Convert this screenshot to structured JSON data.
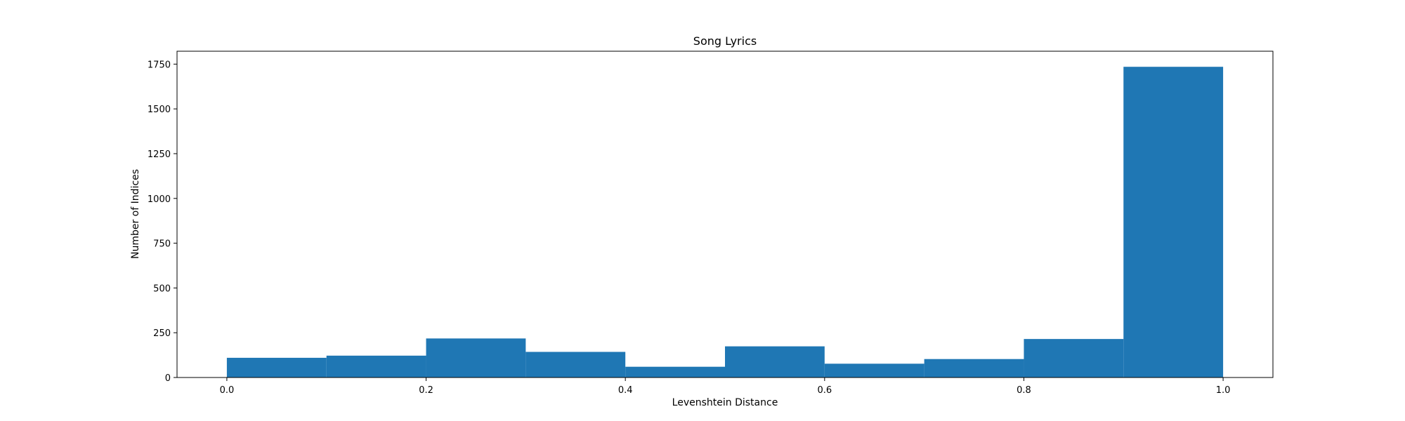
{
  "chart_data": {
    "type": "bar",
    "title": "Song Lyrics",
    "xlabel": "Levenshtein Distance",
    "ylabel": "Number of Indices",
    "bin_edges": [
      0.0,
      0.1,
      0.2,
      0.3,
      0.4,
      0.5,
      0.6,
      0.7,
      0.8,
      0.9,
      1.0
    ],
    "values": [
      110,
      122,
      218,
      143,
      60,
      174,
      77,
      103,
      215,
      1735
    ],
    "xlim": [
      -0.05,
      1.05
    ],
    "ylim": [
      0,
      1822
    ],
    "xticks": [
      0.0,
      0.2,
      0.4,
      0.6,
      0.8,
      1.0
    ],
    "xtick_labels": [
      "0.0",
      "0.2",
      "0.4",
      "0.6",
      "0.8",
      "1.0"
    ],
    "yticks": [
      0,
      250,
      500,
      750,
      1000,
      1250,
      1500,
      1750
    ],
    "ytick_labels": [
      "0",
      "250",
      "500",
      "750",
      "1000",
      "1250",
      "1500",
      "1750"
    ],
    "bar_color": "#1f77b4",
    "grid": false,
    "legend": false
  }
}
